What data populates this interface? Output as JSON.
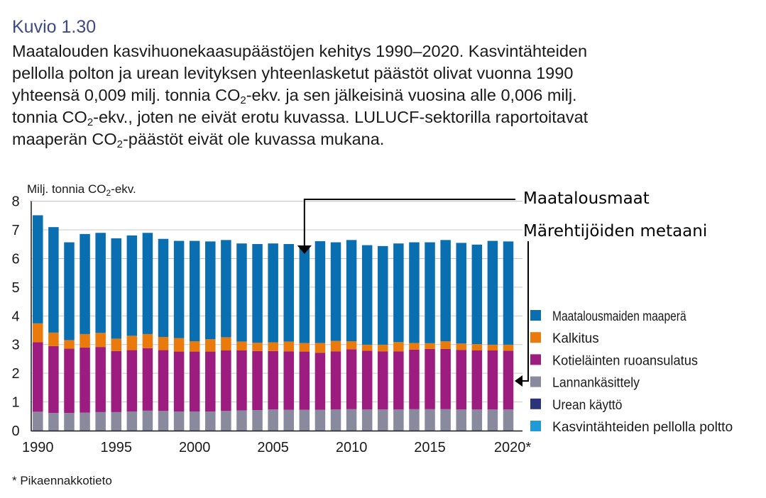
{
  "figure": {
    "label": "Kuvio 1.30",
    "caption_lines": [
      [
        "Maatalouden kasvihuonekaasupäästöjen kehitys 1990–2020. Kasvintähteiden",
        "",
        ""
      ],
      [
        "pellolla polton ja urean levityksen yhteenlasketut päästöt olivat vuonna 1990",
        "",
        ""
      ],
      [
        "yhteensä 0,009 milj. tonnia CO",
        "2",
        "-ekv. ja sen jälkeisinä vuosina alle 0,006 milj."
      ],
      [
        "tonnia CO",
        "2",
        "-ekv., joten ne eivät erotu kuvassa. LULUCF-sektorilla raportoitavat"
      ],
      [
        "maaperän CO",
        "2",
        "-päästöt eivät ole kuvassa mukana."
      ]
    ],
    "footnote": "* Pikaennakkotieto"
  },
  "chart_data": {
    "type": "bar",
    "stacked": true,
    "ylabel_main": "Milj. tonnia CO",
    "ylabel_sub": "2",
    "ylabel_tail": "-ekv.",
    "ylim": [
      0,
      8
    ],
    "yticks": [
      "0",
      "1",
      "2",
      "3",
      "4",
      "5",
      "6",
      "7",
      "8"
    ],
    "grid": true,
    "xticks": [
      {
        "year": 1990,
        "label": "1990"
      },
      {
        "year": 1995,
        "label": "1995"
      },
      {
        "year": 2000,
        "label": "2000"
      },
      {
        "year": 2005,
        "label": "2005"
      },
      {
        "year": 2010,
        "label": "2010"
      },
      {
        "year": 2015,
        "label": "2015"
      },
      {
        "year": 2020,
        "label": "2020*"
      }
    ],
    "categories": [
      1990,
      1991,
      1992,
      1993,
      1994,
      1995,
      1996,
      1997,
      1998,
      1999,
      2000,
      2001,
      2002,
      2003,
      2004,
      2005,
      2006,
      2007,
      2008,
      2009,
      2010,
      2011,
      2012,
      2013,
      2014,
      2015,
      2016,
      2017,
      2018,
      2019,
      2020
    ],
    "series": [
      {
        "name": "Kasvintähteiden pellolla poltto",
        "color": "#1f9ad6",
        "values": [
          0.004,
          0.003,
          0.003,
          0.003,
          0.003,
          0.003,
          0.003,
          0.003,
          0.003,
          0.003,
          0.003,
          0.003,
          0.003,
          0.003,
          0.003,
          0.003,
          0.003,
          0.003,
          0.003,
          0.003,
          0.003,
          0.003,
          0.003,
          0.003,
          0.003,
          0.003,
          0.003,
          0.003,
          0.003,
          0.003,
          0.003
        ]
      },
      {
        "name": "Urean käyttö",
        "color": "#2b347a",
        "values": [
          0.005,
          0.003,
          0.003,
          0.003,
          0.003,
          0.003,
          0.003,
          0.003,
          0.003,
          0.003,
          0.003,
          0.003,
          0.003,
          0.003,
          0.003,
          0.003,
          0.003,
          0.003,
          0.003,
          0.003,
          0.003,
          0.003,
          0.003,
          0.003,
          0.003,
          0.003,
          0.003,
          0.003,
          0.003,
          0.003,
          0.003
        ]
      },
      {
        "name": "Lannankäsittely",
        "color": "#8a8a9e",
        "values": [
          0.65,
          0.61,
          0.61,
          0.62,
          0.64,
          0.64,
          0.66,
          0.69,
          0.68,
          0.66,
          0.66,
          0.66,
          0.68,
          0.7,
          0.71,
          0.73,
          0.72,
          0.72,
          0.72,
          0.73,
          0.74,
          0.73,
          0.73,
          0.73,
          0.74,
          0.74,
          0.74,
          0.73,
          0.73,
          0.73,
          0.73
        ]
      },
      {
        "name": "Kotieläinten ruoansulatus",
        "color": "#9c1c80",
        "values": [
          2.42,
          2.33,
          2.24,
          2.27,
          2.27,
          2.13,
          2.14,
          2.18,
          2.12,
          2.09,
          2.09,
          2.09,
          2.11,
          2.09,
          2.06,
          2.04,
          2.04,
          2.03,
          1.99,
          2.03,
          2.09,
          2.05,
          2.03,
          2.03,
          2.08,
          2.1,
          2.1,
          2.08,
          2.06,
          2.06,
          2.05
        ]
      },
      {
        "name": "Kalkitus",
        "color": "#ea7a0c",
        "values": [
          0.66,
          0.47,
          0.3,
          0.47,
          0.49,
          0.43,
          0.5,
          0.49,
          0.46,
          0.47,
          0.36,
          0.43,
          0.46,
          0.31,
          0.29,
          0.3,
          0.34,
          0.3,
          0.34,
          0.36,
          0.28,
          0.21,
          0.23,
          0.32,
          0.23,
          0.2,
          0.27,
          0.22,
          0.22,
          0.2,
          0.21
        ]
      },
      {
        "name": "Maatalousmaiden maaperä",
        "color": "#0a6fb0",
        "values": [
          3.77,
          3.68,
          3.41,
          3.49,
          3.49,
          3.5,
          3.5,
          3.53,
          3.42,
          3.39,
          3.5,
          3.41,
          3.39,
          3.42,
          3.44,
          3.45,
          3.4,
          3.4,
          3.55,
          3.44,
          3.53,
          3.47,
          3.44,
          3.44,
          3.51,
          3.52,
          3.53,
          3.51,
          3.47,
          3.62,
          3.6
        ]
      }
    ],
    "legend_order": [
      5,
      4,
      3,
      2,
      1,
      0
    ],
    "legend_placement": "right",
    "annotations": [
      {
        "text": "Maatalousmaat",
        "points_to_year": 2007
      },
      {
        "text": "Märehtijöiden metaani",
        "points_to_year": 2020
      }
    ]
  }
}
